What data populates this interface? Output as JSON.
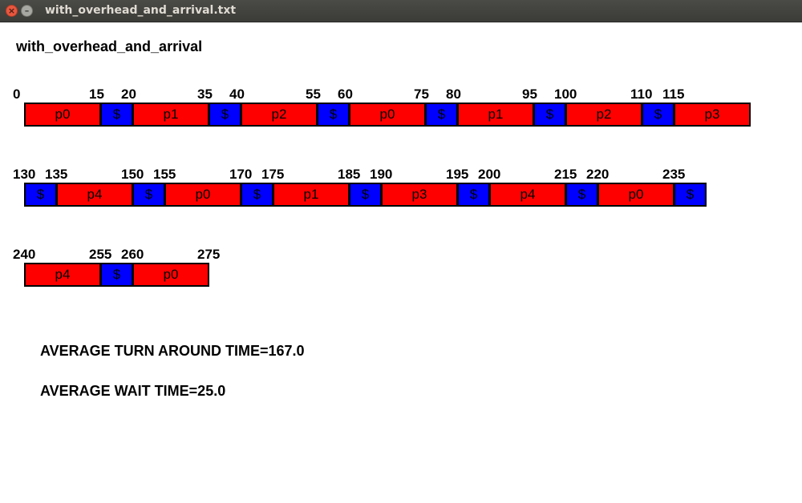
{
  "window": {
    "title": "with_overhead_and_arrival.txt",
    "close_glyph": "×",
    "minimize_glyph": "–"
  },
  "header": "with_overhead_and_arrival",
  "gantt_rows": [
    {
      "ticks": [
        "0",
        "15",
        "20",
        "35",
        "40",
        "55",
        "60",
        "75",
        "80",
        "95",
        "100",
        "110",
        "115"
      ],
      "blocks": [
        {
          "label": "p0",
          "kind": "proc"
        },
        {
          "label": "$",
          "kind": "ovh"
        },
        {
          "label": "p1",
          "kind": "proc"
        },
        {
          "label": "$",
          "kind": "ovh"
        },
        {
          "label": "p2",
          "kind": "proc"
        },
        {
          "label": "$",
          "kind": "ovh"
        },
        {
          "label": "p0",
          "kind": "proc"
        },
        {
          "label": "$",
          "kind": "ovh"
        },
        {
          "label": "p1",
          "kind": "proc"
        },
        {
          "label": "$",
          "kind": "ovh"
        },
        {
          "label": "p2",
          "kind": "proc"
        },
        {
          "label": "$",
          "kind": "ovh"
        },
        {
          "label": "p3",
          "kind": "proc"
        }
      ]
    },
    {
      "ticks": [
        "130",
        "135",
        "150",
        "155",
        "170",
        "175",
        "185",
        "190",
        "195",
        "200",
        "215",
        "220",
        "235"
      ],
      "blocks": [
        {
          "label": "$",
          "kind": "ovh"
        },
        {
          "label": "p4",
          "kind": "proc"
        },
        {
          "label": "$",
          "kind": "ovh"
        },
        {
          "label": "p0",
          "kind": "proc"
        },
        {
          "label": "$",
          "kind": "ovh"
        },
        {
          "label": "p1",
          "kind": "proc"
        },
        {
          "label": "$",
          "kind": "ovh"
        },
        {
          "label": "p3",
          "kind": "proc"
        },
        {
          "label": "$",
          "kind": "ovh"
        },
        {
          "label": "p4",
          "kind": "proc"
        },
        {
          "label": "$",
          "kind": "ovh"
        },
        {
          "label": "p0",
          "kind": "proc"
        },
        {
          "label": "$",
          "kind": "ovh"
        }
      ]
    },
    {
      "ticks": [
        "240",
        "255",
        "260",
        "275"
      ],
      "blocks": [
        {
          "label": "p4",
          "kind": "proc"
        },
        {
          "label": "$",
          "kind": "ovh"
        },
        {
          "label": "p0",
          "kind": "proc"
        }
      ]
    }
  ],
  "stats": {
    "turnaround": "AVERAGE TURN AROUND TIME=167.0",
    "wait": "AVERAGE WAIT TIME=25.0"
  },
  "colors": {
    "process_block": "#ff0000",
    "overhead_block": "#0000ff"
  }
}
